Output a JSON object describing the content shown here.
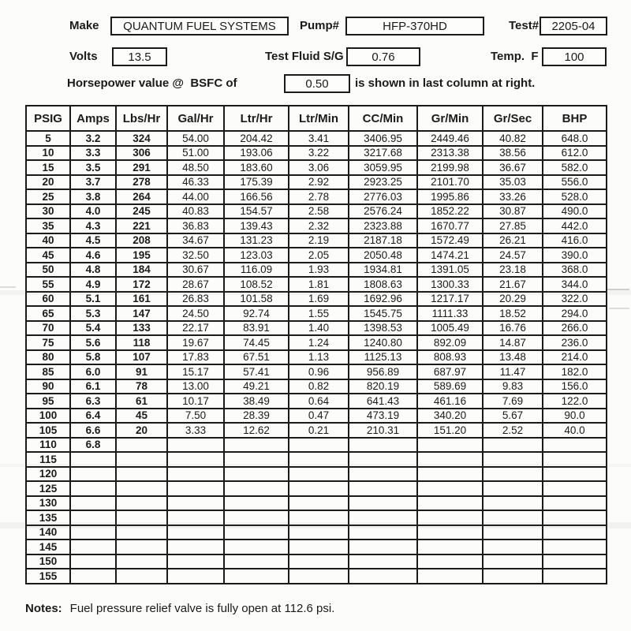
{
  "form": {
    "make": {
      "label": "Make",
      "value": "QUANTUM FUEL SYSTEMS"
    },
    "pump": {
      "label": "Pump#",
      "value": "HFP-370HD"
    },
    "test": {
      "label": "Test#",
      "value": "2205-04"
    },
    "volts": {
      "label": "Volts",
      "value": "13.5"
    },
    "fluid_sg": {
      "label": "Test Fluid S/G",
      "value": "0.76"
    },
    "temp": {
      "label": "Temp.  F",
      "value": "100"
    },
    "bsfc": {
      "prefix": "Horsepower value @  BSFC of",
      "value": "0.50",
      "suffix": "is shown in last column at right."
    }
  },
  "table": {
    "columns": [
      "PSIG",
      "Amps",
      "Lbs/Hr",
      "Gal/Hr",
      "Ltr/Hr",
      "Ltr/Min",
      "CC/Min",
      "Gr/Min",
      "Gr/Sec",
      "BHP"
    ],
    "bold_columns": 3,
    "rows": [
      [
        "5",
        "3.2",
        "324",
        "54.00",
        "204.42",
        "3.41",
        "3406.95",
        "2449.46",
        "40.82",
        "648.0"
      ],
      [
        "10",
        "3.3",
        "306",
        "51.00",
        "193.06",
        "3.22",
        "3217.68",
        "2313.38",
        "38.56",
        "612.0"
      ],
      [
        "15",
        "3.5",
        "291",
        "48.50",
        "183.60",
        "3.06",
        "3059.95",
        "2199.98",
        "36.67",
        "582.0"
      ],
      [
        "20",
        "3.7",
        "278",
        "46.33",
        "175.39",
        "2.92",
        "2923.25",
        "2101.70",
        "35.03",
        "556.0"
      ],
      [
        "25",
        "3.8",
        "264",
        "44.00",
        "166.56",
        "2.78",
        "2776.03",
        "1995.86",
        "33.26",
        "528.0"
      ],
      [
        "30",
        "4.0",
        "245",
        "40.83",
        "154.57",
        "2.58",
        "2576.24",
        "1852.22",
        "30.87",
        "490.0"
      ],
      [
        "35",
        "4.3",
        "221",
        "36.83",
        "139.43",
        "2.32",
        "2323.88",
        "1670.77",
        "27.85",
        "442.0"
      ],
      [
        "40",
        "4.5",
        "208",
        "34.67",
        "131.23",
        "2.19",
        "2187.18",
        "1572.49",
        "26.21",
        "416.0"
      ],
      [
        "45",
        "4.6",
        "195",
        "32.50",
        "123.03",
        "2.05",
        "2050.48",
        "1474.21",
        "24.57",
        "390.0"
      ],
      [
        "50",
        "4.8",
        "184",
        "30.67",
        "116.09",
        "1.93",
        "1934.81",
        "1391.05",
        "23.18",
        "368.0"
      ],
      [
        "55",
        "4.9",
        "172",
        "28.67",
        "108.52",
        "1.81",
        "1808.63",
        "1300.33",
        "21.67",
        "344.0"
      ],
      [
        "60",
        "5.1",
        "161",
        "26.83",
        "101.58",
        "1.69",
        "1692.96",
        "1217.17",
        "20.29",
        "322.0"
      ],
      [
        "65",
        "5.3",
        "147",
        "24.50",
        "92.74",
        "1.55",
        "1545.75",
        "1111.33",
        "18.52",
        "294.0"
      ],
      [
        "70",
        "5.4",
        "133",
        "22.17",
        "83.91",
        "1.40",
        "1398.53",
        "1005.49",
        "16.76",
        "266.0"
      ],
      [
        "75",
        "5.6",
        "118",
        "19.67",
        "74.45",
        "1.24",
        "1240.80",
        "892.09",
        "14.87",
        "236.0"
      ],
      [
        "80",
        "5.8",
        "107",
        "17.83",
        "67.51",
        "1.13",
        "1125.13",
        "808.93",
        "13.48",
        "214.0"
      ],
      [
        "85",
        "6.0",
        "91",
        "15.17",
        "57.41",
        "0.96",
        "956.89",
        "687.97",
        "11.47",
        "182.0"
      ],
      [
        "90",
        "6.1",
        "78",
        "13.00",
        "49.21",
        "0.82",
        "820.19",
        "589.69",
        "9.83",
        "156.0"
      ],
      [
        "95",
        "6.3",
        "61",
        "10.17",
        "38.49",
        "0.64",
        "641.43",
        "461.16",
        "7.69",
        "122.0"
      ],
      [
        "100",
        "6.4",
        "45",
        "7.50",
        "28.39",
        "0.47",
        "473.19",
        "340.20",
        "5.67",
        "90.0"
      ],
      [
        "105",
        "6.6",
        "20",
        "3.33",
        "12.62",
        "0.21",
        "210.31",
        "151.20",
        "2.52",
        "40.0"
      ],
      [
        "110",
        "6.8",
        "",
        "",
        "",
        "",
        "",
        "",
        "",
        ""
      ],
      [
        "115",
        "",
        "",
        "",
        "",
        "",
        "",
        "",
        "",
        ""
      ],
      [
        "120",
        "",
        "",
        "",
        "",
        "",
        "",
        "",
        "",
        ""
      ],
      [
        "125",
        "",
        "",
        "",
        "",
        "",
        "",
        "",
        "",
        ""
      ],
      [
        "130",
        "",
        "",
        "",
        "",
        "",
        "",
        "",
        "",
        ""
      ],
      [
        "135",
        "",
        "",
        "",
        "",
        "",
        "",
        "",
        "",
        ""
      ],
      [
        "140",
        "",
        "",
        "",
        "",
        "",
        "",
        "",
        "",
        ""
      ],
      [
        "145",
        "",
        "",
        "",
        "",
        "",
        "",
        "",
        "",
        ""
      ],
      [
        "150",
        "",
        "",
        "",
        "",
        "",
        "",
        "",
        "",
        ""
      ],
      [
        "155",
        "",
        "",
        "",
        "",
        "",
        "",
        "",
        "",
        ""
      ]
    ]
  },
  "notes": {
    "label": "Notes:",
    "text": "Fuel pressure relief valve is fully open at 112.6 psi."
  },
  "colors": {
    "ink": "#1b1b1b",
    "paper": "#fcfcfa"
  }
}
